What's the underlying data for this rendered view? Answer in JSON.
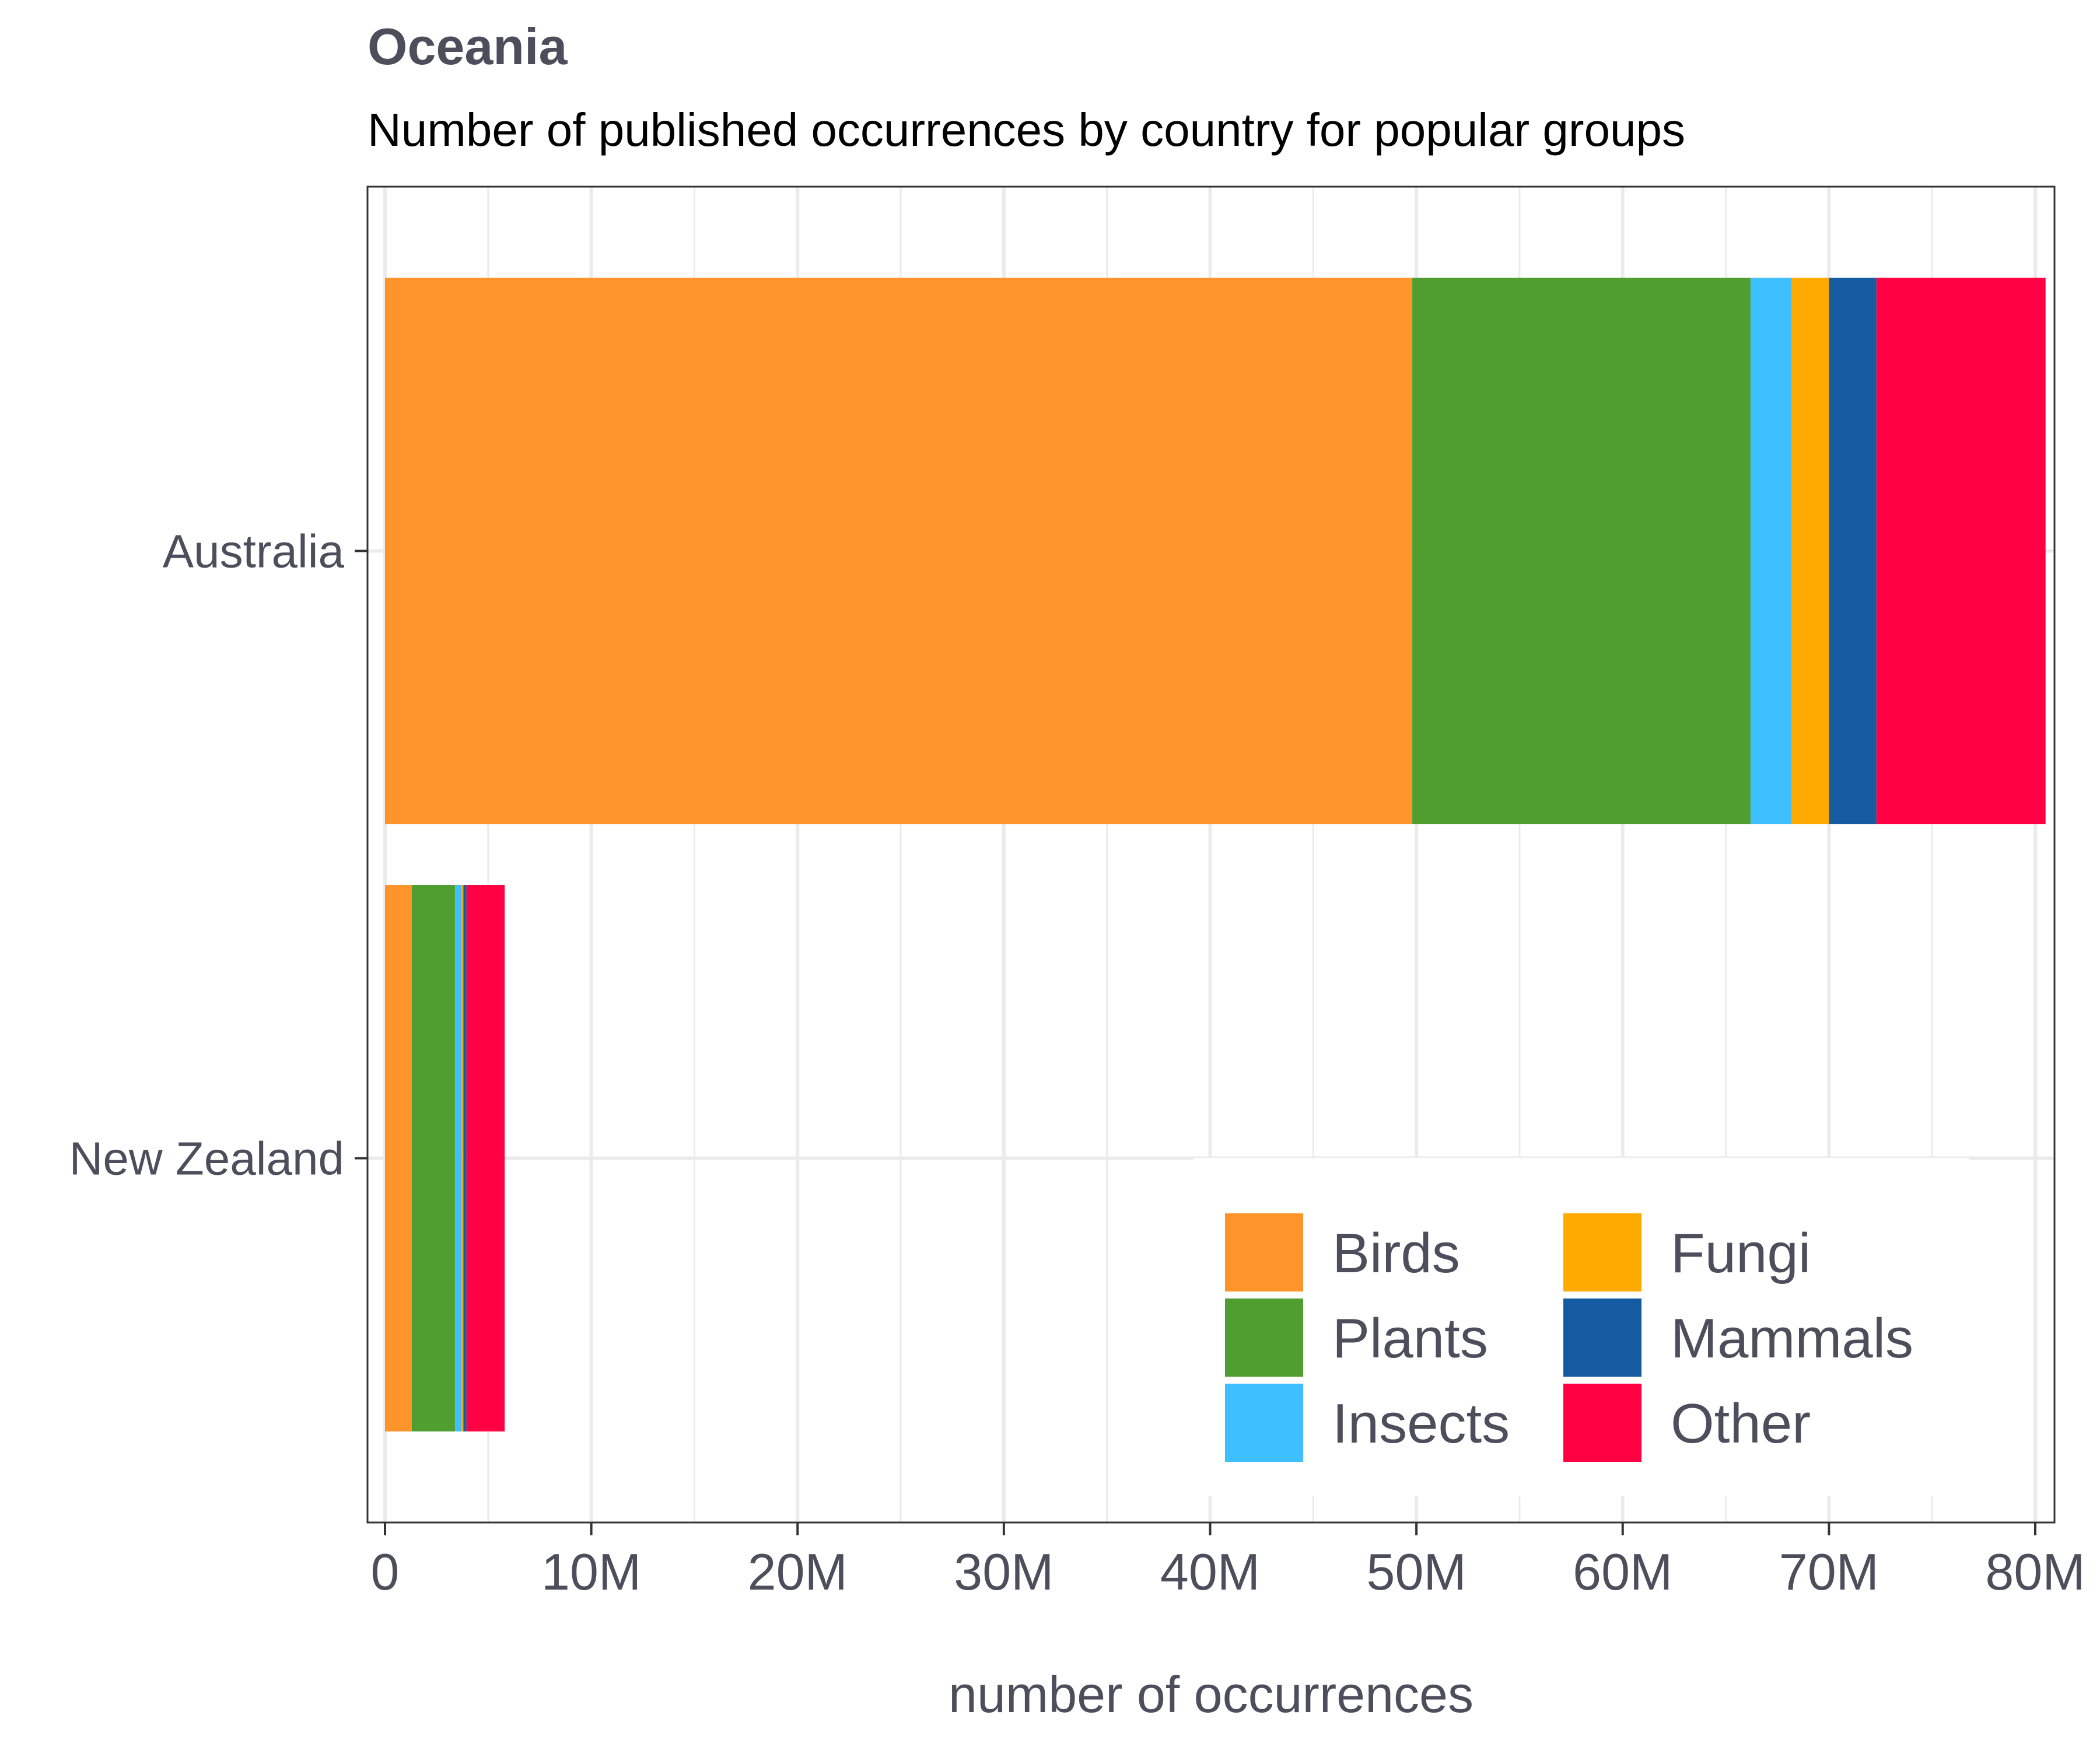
{
  "chart_data": {
    "type": "bar",
    "orientation": "horizontal",
    "stacked": true,
    "title": "Oceania",
    "subtitle": "Number of published occurrences by country for popular groups",
    "xlabel": "number of occurrences",
    "ylabel": "",
    "categories": [
      "Australia",
      "New Zealand"
    ],
    "xlim": [
      0,
      80000000
    ],
    "x_ticks": [
      {
        "value": 0,
        "label": "0"
      },
      {
        "value": 10000000,
        "label": "10M"
      },
      {
        "value": 20000000,
        "label": "20M"
      },
      {
        "value": 30000000,
        "label": "30M"
      },
      {
        "value": 40000000,
        "label": "40M"
      },
      {
        "value": 50000000,
        "label": "50M"
      },
      {
        "value": 60000000,
        "label": "60M"
      },
      {
        "value": 70000000,
        "label": "70M"
      },
      {
        "value": 80000000,
        "label": "80M"
      }
    ],
    "series": [
      {
        "name": "Birds",
        "color": "#ff942a",
        "values": [
          49800000,
          1300000
        ]
      },
      {
        "name": "Plants",
        "color": "#509e2f",
        "values": [
          16400000,
          2100000
        ]
      },
      {
        "name": "Insects",
        "color": "#3ebfff",
        "values": [
          2000000,
          300000
        ]
      },
      {
        "name": "Fungi",
        "color": "#ffaa00",
        "values": [
          1800000,
          100000
        ]
      },
      {
        "name": "Mammals",
        "color": "#155ba2",
        "values": [
          2300000,
          150000
        ]
      },
      {
        "name": "Other",
        "color": "#ff0042",
        "values": [
          8200000,
          1850000
        ]
      }
    ],
    "grid": true,
    "legend_position": "bottom-right"
  }
}
